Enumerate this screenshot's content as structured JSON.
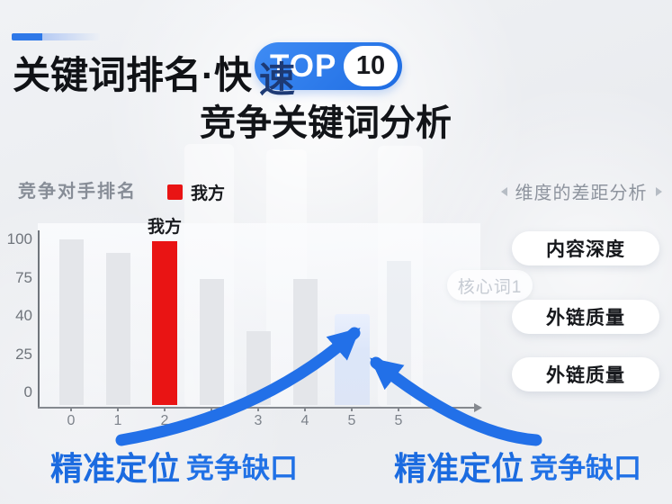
{
  "header": {
    "title_main": "关键词排名·快",
    "title_tail": "速",
    "badge": {
      "label": "TOP",
      "number": "10"
    },
    "subtitle": "竞争关键词分析"
  },
  "chart": {
    "title": "竞争对手排名",
    "legend_label": "我方",
    "our_bar_label": "我方"
  },
  "chart_data": {
    "type": "bar",
    "title": "竞争对手排名",
    "categories": [
      "0",
      "1",
      "2",
      "",
      "3",
      "4",
      "5",
      "5"
    ],
    "series": [
      {
        "name": "竞争对手排名",
        "values": [
          100,
          91,
          99,
          74,
          34,
          74,
          42,
          86
        ]
      }
    ],
    "bar_styles": [
      "normal",
      "normal",
      "primary",
      "normal",
      "normal",
      "normal",
      "soft",
      "faint"
    ],
    "highlight": {
      "index": 2,
      "name": "我方",
      "color": "#e91414",
      "value": 99
    },
    "gap_highlight": {
      "index": 6,
      "color": "#dde6f8",
      "value": 42
    },
    "y_ticks": [
      "100",
      "75",
      "40",
      "25",
      "0"
    ],
    "ylim": [
      0,
      100
    ],
    "legend": [
      "我方"
    ],
    "legend_position": "top",
    "grid": false
  },
  "watermark_chip": "核心词1",
  "panel": {
    "header": "维度的差距分析",
    "buttons": [
      "内容深度",
      "外链质量",
      "外链质量"
    ]
  },
  "callouts": {
    "left": {
      "strong": "精准定位",
      "rest": "竞争缺口"
    },
    "right": {
      "strong": "精准定位",
      "rest": "竞争缺口"
    }
  },
  "colors": {
    "accent_blue": "#2270e8",
    "badge_blue": "#2478ee",
    "our_red": "#e91414",
    "gap_bar_blue": "#dde6f8",
    "background": "#edeff2"
  }
}
